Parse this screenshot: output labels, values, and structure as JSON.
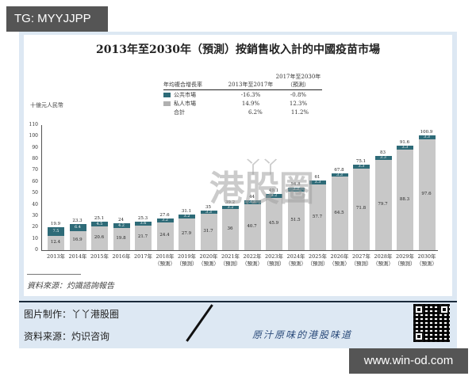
{
  "badges": {
    "top_left": "TG: MYYJJPP",
    "bottom_right": "www.win-od.com"
  },
  "chart_data": {
    "type": "bar",
    "stacked": true,
    "title": "2013年至2030年（預測）按銷售收入計的中國疫苗市場",
    "ylabel": "十億元人民幣",
    "xlabel": "",
    "ylim": [
      0,
      110
    ],
    "yticks": [
      0,
      10,
      20,
      30,
      40,
      50,
      60,
      70,
      80,
      90,
      100,
      110
    ],
    "grid": false,
    "categories": [
      "2013年",
      "2014年",
      "2015年",
      "2016年",
      "2017年",
      "2018年",
      "2019年",
      "2020年",
      "2021年",
      "2022年",
      "2023年",
      "2024年",
      "2025年",
      "2026年",
      "2027年",
      "2028年",
      "2029年",
      "2030年"
    ],
    "forecast_suffix": "（預測）",
    "forecast_from_index": 5,
    "series": [
      {
        "name": "私人市場",
        "color": "#c8c8c8",
        "values": [
          12.4,
          16.9,
          20.6,
          19.8,
          21.7,
          24.4,
          27.9,
          31.7,
          36.0,
          40.7,
          45.9,
          51.5,
          57.7,
          64.5,
          71.8,
          79.7,
          88.3,
          97.6
        ]
      },
      {
        "name": "公共市場",
        "color": "#2e6b78",
        "values": [
          7.5,
          6.4,
          4.5,
          4.2,
          3.6,
          3.2,
          3.2,
          3.3,
          3.2,
          3.3,
          3.2,
          3.3,
          3.3,
          3.3,
          3.3,
          3.3,
          3.3,
          3.3
        ]
      }
    ],
    "totals": [
      19.9,
      23.3,
      25.1,
      24.0,
      25.3,
      27.6,
      31.1,
      35.0,
      39.2,
      44.0,
      49.1,
      54.8,
      61.0,
      67.8,
      75.1,
      83.0,
      91.6,
      100.9
    ],
    "cagr_table": {
      "header": [
        "年均複合增長率",
        "2013年至2017年",
        "2017年至2030年（預測）"
      ],
      "rows": [
        {
          "label": "公共市場",
          "color": "#2e6b78",
          "v1": "-16.3%",
          "v2": "-0.8%"
        },
        {
          "label": "私人市場",
          "color": "#b0b0b0",
          "v1": "14.9%",
          "v2": "12.3%"
        },
        {
          "label": "合計",
          "color": "",
          "v1": "6.2%",
          "v2": "11.2%"
        }
      ]
    },
    "legend_position": "top-center table"
  },
  "watermark": {
    "top": "丫丫",
    "main": "港股圈"
  },
  "source_note": "資料來源：灼識諮詢報告",
  "footer": {
    "made_by": "图片制作：丫丫港股圈",
    "source": "资料来源：灼识咨询",
    "slogan": "原汁原味的港股味道"
  }
}
